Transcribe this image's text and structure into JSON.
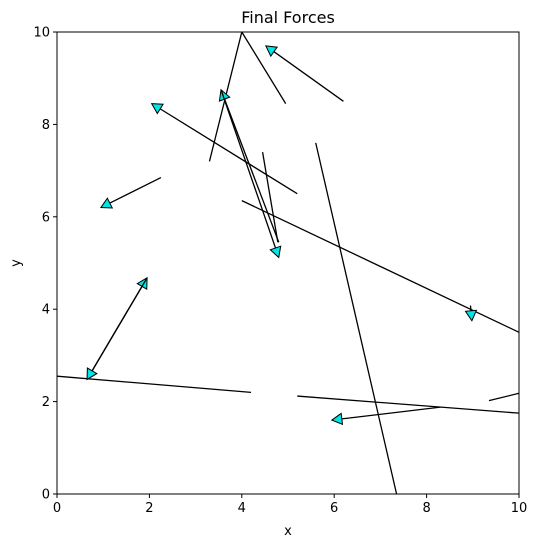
{
  "chart_data": {
    "type": "line",
    "title": "Final Forces",
    "xlabel": "x",
    "ylabel": "y",
    "xlim": [
      0,
      10
    ],
    "ylim": [
      0,
      10
    ],
    "xticks": [
      0,
      2,
      4,
      6,
      8,
      10
    ],
    "yticks": [
      0,
      2,
      4,
      6,
      8,
      10
    ],
    "xtick_labels": [
      "0",
      "2",
      "4",
      "6",
      "8",
      "10"
    ],
    "ytick_labels": [
      "0",
      "2",
      "4",
      "6",
      "8",
      "10"
    ],
    "grid": false,
    "segments": [
      {
        "x": [
          0.0,
          4.2
        ],
        "y": [
          2.55,
          2.2
        ]
      },
      {
        "x": [
          5.2,
          10.0
        ],
        "y": [
          2.12,
          1.75
        ]
      },
      {
        "x": [
          9.35,
          10.0
        ],
        "y": [
          2.02,
          2.18
        ]
      },
      {
        "x": [
          3.3,
          4.0
        ],
        "y": [
          7.2,
          10.0
        ]
      },
      {
        "x": [
          4.0,
          4.95
        ],
        "y": [
          10.0,
          8.45
        ]
      },
      {
        "x": [
          4.45,
          4.78
        ],
        "y": [
          7.4,
          5.45
        ]
      },
      {
        "x": [
          5.6,
          7.35
        ],
        "y": [
          7.6,
          0.0
        ]
      },
      {
        "x": [
          4.0,
          10.0
        ],
        "y": [
          6.35,
          3.5
        ]
      }
    ],
    "arrows": [
      {
        "x": [
          6.2,
          4.52
        ],
        "y": [
          8.5,
          9.7
        ]
      },
      {
        "x": [
          5.2,
          2.05
        ],
        "y": [
          6.5,
          8.45
        ]
      },
      {
        "x": [
          4.8,
          3.55
        ],
        "y": [
          5.45,
          8.75
        ]
      },
      {
        "x": [
          3.55,
          4.8
        ],
        "y": [
          8.75,
          5.12
        ]
      },
      {
        "x": [
          2.25,
          0.95
        ],
        "y": [
          6.85,
          6.2
        ]
      },
      {
        "x": [
          0.65,
          1.95
        ],
        "y": [
          2.48,
          4.68
        ]
      },
      {
        "x": [
          1.95,
          0.65
        ],
        "y": [
          4.68,
          2.48
        ]
      },
      {
        "x": [
          8.3,
          5.95
        ],
        "y": [
          1.88,
          1.6
        ]
      },
      {
        "x": [
          8.95,
          8.98
        ],
        "y": [
          4.08,
          3.75
        ]
      }
    ],
    "colors": {
      "line": "#000000",
      "arrowhead_fill": "#00e5e5",
      "arrowhead_stroke": "#000000"
    }
  }
}
